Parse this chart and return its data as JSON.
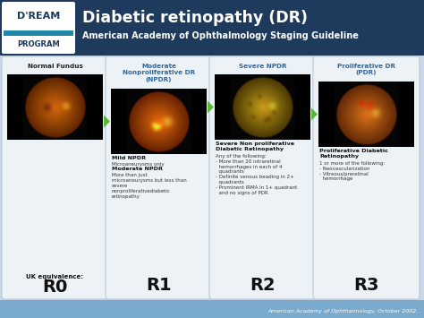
{
  "title_line1": "Diabetic retinopathy (DR)",
  "title_line2": "American Academy of Ophthalmology Staging Guideline",
  "bg_color": "#c8d8e8",
  "header_bg": "#1e3a5c",
  "footer_bg": "#4a7aaa",
  "footer_text": "American Academy of Ophthalmology, October 2002.",
  "arrow_color": "#55bb33",
  "stages": [
    {
      "title": "Normal Fundus",
      "title_color": "#222222",
      "uk_label": "UK equivalence:",
      "uk_code": "R0",
      "has_arrow": false,
      "eye_type": 0,
      "desc_bold1": "",
      "desc_sub1": "",
      "desc_bold2": "",
      "desc_sub2": ""
    },
    {
      "title": "Moderate\nNonproliferative DR\n(NPDR)",
      "title_color": "#336699",
      "uk_label": "",
      "uk_code": "R1",
      "has_arrow": true,
      "eye_type": 1,
      "desc_bold1": "Mild NPDR",
      "desc_sub1": "Microaneurysms only",
      "desc_bold2": "Moderate NPDR",
      "desc_sub2": "More than just\nmicroaneurysms but less than\nsevere\nnonproliferativediabetic\nretinopathy"
    },
    {
      "title": "Severe NPDR",
      "title_color": "#336699",
      "uk_label": "",
      "uk_code": "R2",
      "has_arrow": true,
      "eye_type": 2,
      "desc_bold1": "Severe Non proliferative\nDiabetic Retinopathy",
      "desc_sub1": "Any of the following:\n- More than 20 intraretinal\n  hemorrhages in each of 4\n  quadrants\n- Definite venous beading in 2+\n  quadrants\n- Prominent IRMA in 1+ quadrant\n  and no signs of PDR",
      "desc_bold2": "",
      "desc_sub2": ""
    },
    {
      "title": "Proliferative DR\n(PDR)",
      "title_color": "#336699",
      "uk_label": "",
      "uk_code": "R3",
      "has_arrow": true,
      "eye_type": 3,
      "desc_bold1": "Proliferative Diabetic\nRetinopathy",
      "desc_sub1": "1 or more of the following:\n- Neovascularization\n- Vitreous/preretinal\n  hemorrhage",
      "desc_bold2": "",
      "desc_sub2": ""
    }
  ]
}
